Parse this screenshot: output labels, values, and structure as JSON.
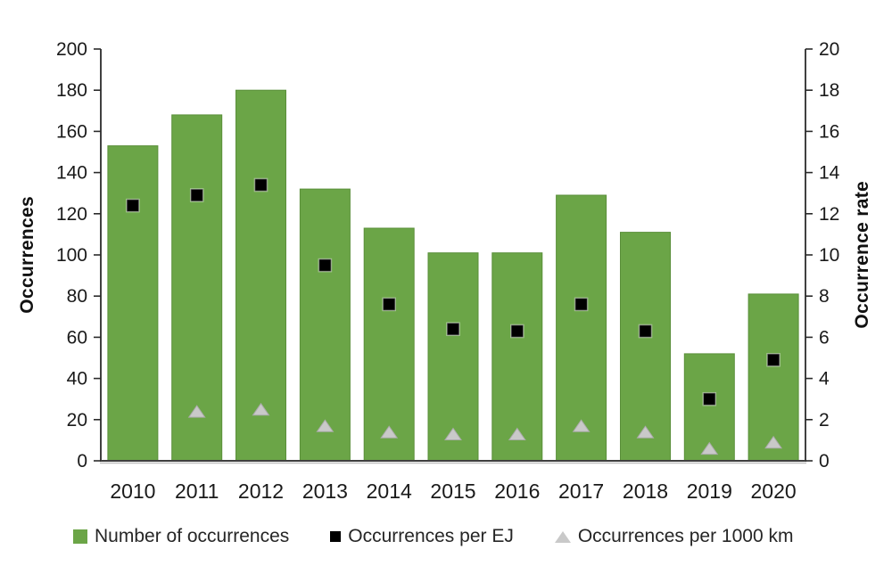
{
  "chart_data": {
    "type": "bar",
    "title": "",
    "categories": [
      "2010",
      "2011",
      "2012",
      "2013",
      "2014",
      "2015",
      "2016",
      "2017",
      "2018",
      "2019",
      "2020"
    ],
    "series": [
      {
        "name": "Number of occurrences",
        "kind": "bar",
        "axis": "left",
        "color": "#6ba547",
        "border_color": "#5a8f3a",
        "values": [
          153,
          168,
          180,
          132,
          113,
          101,
          101,
          129,
          111,
          52,
          81
        ]
      },
      {
        "name": "Occurrences per EJ",
        "kind": "scatter",
        "marker": "square",
        "axis": "right",
        "color": "#000000",
        "border_color": "#e2efda",
        "values": [
          12.4,
          12.9,
          13.4,
          9.5,
          7.6,
          6.4,
          6.3,
          7.6,
          6.3,
          3.0,
          4.9
        ]
      },
      {
        "name": "Occurrences per 1000 km",
        "kind": "scatter",
        "marker": "triangle",
        "axis": "right",
        "color": "#c9c9c9",
        "border_color": "#ababab",
        "values": [
          null,
          2.4,
          2.5,
          1.7,
          1.4,
          1.3,
          1.3,
          1.7,
          1.4,
          0.6,
          0.9
        ]
      }
    ],
    "left_axis": {
      "label": "Occurrences",
      "min": 0,
      "max": 200,
      "step": 20
    },
    "right_axis": {
      "label": "Occurrence rate",
      "min": 0,
      "max": 20,
      "step": 2
    },
    "legend_position": "bottom",
    "grid": "off",
    "background_color": "#ffffff",
    "axis_color": "#2b2b2b"
  }
}
